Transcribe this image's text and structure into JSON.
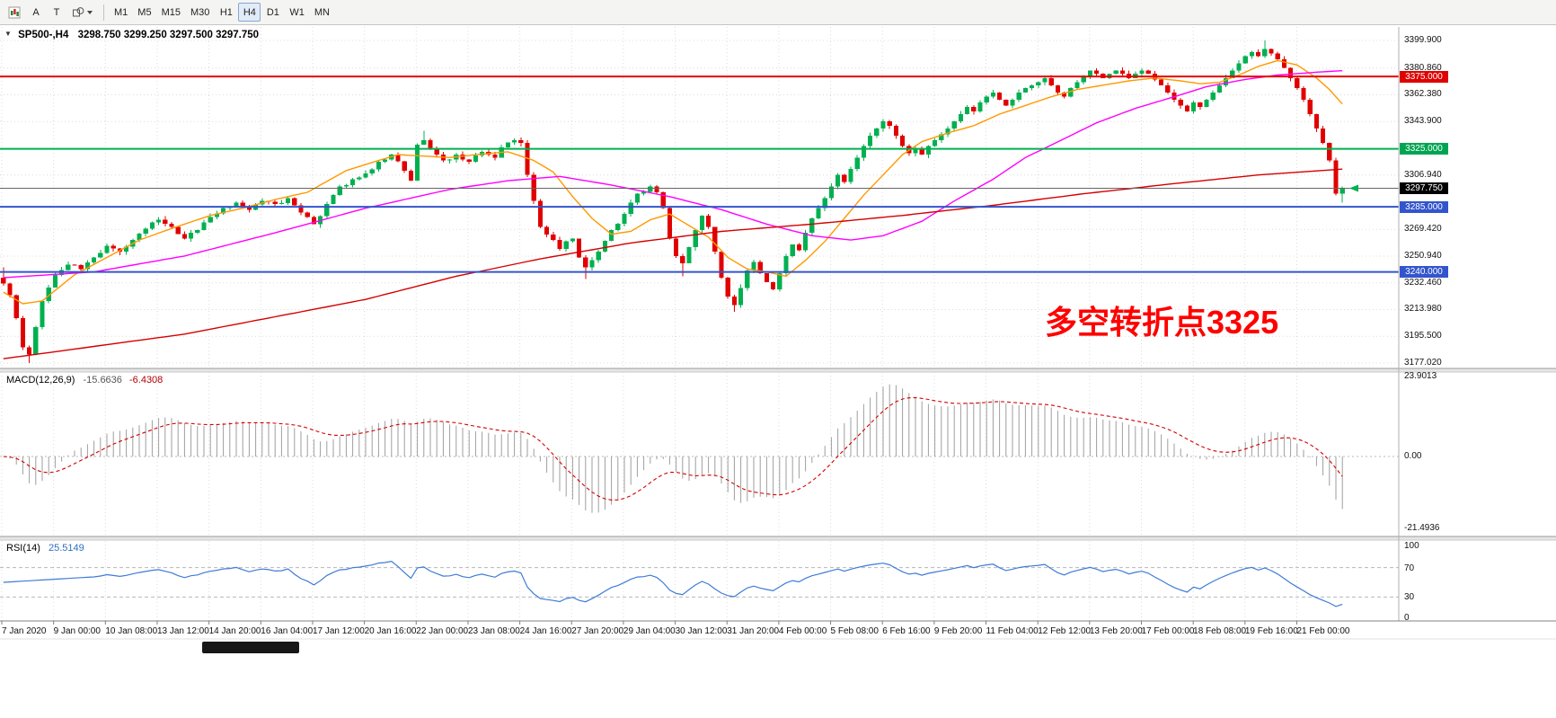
{
  "toolbar": {
    "tools": [
      {
        "name": "chart-list-icon",
        "label": ""
      },
      {
        "name": "text-a-tool",
        "label": "A"
      },
      {
        "name": "text-t-tool",
        "label": "T"
      },
      {
        "name": "shapes-tool",
        "label": ""
      }
    ],
    "timeframes": [
      {
        "label": "M1",
        "active": false
      },
      {
        "label": "M5",
        "active": false
      },
      {
        "label": "M15",
        "active": false
      },
      {
        "label": "M30",
        "active": false
      },
      {
        "label": "H1",
        "active": false
      },
      {
        "label": "H4",
        "active": true
      },
      {
        "label": "D1",
        "active": false
      },
      {
        "label": "W1",
        "active": false
      },
      {
        "label": "MN",
        "active": false
      }
    ]
  },
  "chart": {
    "header": {
      "caret": "▼",
      "symbol": "SP500-,H4",
      "ohlc": "3298.750 3299.250 3297.500 3297.750"
    },
    "annotation": {
      "text": "多空转折点3325",
      "color": "#FF0000"
    },
    "price_markers": [
      {
        "label": "3375.000",
        "price": 3375.0,
        "color": "#df0000"
      },
      {
        "label": "3325.000",
        "price": 3325.0,
        "color": "#00a551"
      },
      {
        "label": "3297.750",
        "price": 3297.75,
        "color": "#000000"
      },
      {
        "label": "3285.000",
        "price": 3285.0,
        "color": "#3355cc"
      },
      {
        "label": "3240.000",
        "price": 3240.0,
        "color": "#3355cc"
      }
    ]
  },
  "macd": {
    "title_name": "MACD(12,26,9)",
    "main_value": "-15.6636",
    "signal_value": "-6.4308",
    "scale": [
      {
        "label": "23.9013",
        "value": 23.9013
      },
      {
        "label": "0.00",
        "value": 0
      },
      {
        "label": "-21.4936",
        "value": -21.4936
      }
    ]
  },
  "rsi": {
    "title_name": "RSI(14)",
    "value": "25.5149",
    "scale": [
      {
        "label": "100",
        "value": 100
      },
      {
        "label": "70",
        "value": 70
      },
      {
        "label": "30",
        "value": 30
      },
      {
        "label": "0",
        "value": 0
      }
    ],
    "levels": [
      70,
      30
    ]
  },
  "chart_data": {
    "type": "candlestick",
    "symbol": "SP500-",
    "timeframe": "H4",
    "bars": 208,
    "current_price": 3297.75,
    "ohlc_display": {
      "open": "3298.750",
      "high": "3299.250",
      "low": "3297.500",
      "close": "3297.750"
    },
    "price_axis": {
      "min": 3177.02,
      "max": 3407.38,
      "ticks": [
        {
          "label": "3399.900",
          "price": 3399.9
        },
        {
          "label": "3380.860",
          "price": 3380.86
        },
        {
          "label": "3362.380",
          "price": 3362.38
        },
        {
          "label": "3343.900",
          "price": 3343.9
        },
        {
          "label": "3306.940",
          "price": 3306.94
        },
        {
          "label": "3269.420",
          "price": 3269.42
        },
        {
          "label": "3250.940",
          "price": 3250.94
        },
        {
          "label": "3232.460",
          "price": 3232.46
        },
        {
          "label": "3213.980",
          "price": 3213.98
        },
        {
          "label": "3195.500",
          "price": 3195.5
        },
        {
          "label": "3177.020",
          "price": 3177.02
        }
      ]
    },
    "horizontal_lines": [
      {
        "price": 3375.0,
        "color": "#e80000",
        "width": 2
      },
      {
        "price": 3325.0,
        "color": "#00b050",
        "width": 2
      },
      {
        "price": 3285.0,
        "color": "#3355cc",
        "width": 2
      },
      {
        "price": 3240.0,
        "color": "#3355cc",
        "width": 2
      }
    ],
    "close_anchors": [
      [
        0,
        3232
      ],
      [
        1,
        3224
      ],
      [
        2,
        3208
      ],
      [
        3,
        3188
      ],
      [
        4,
        3183
      ],
      [
        5,
        3202
      ],
      [
        6,
        3220
      ],
      [
        8,
        3238
      ],
      [
        10,
        3245
      ],
      [
        12,
        3242
      ],
      [
        14,
        3250
      ],
      [
        16,
        3258
      ],
      [
        18,
        3254
      ],
      [
        20,
        3262
      ],
      [
        22,
        3270
      ],
      [
        24,
        3276
      ],
      [
        26,
        3271
      ],
      [
        28,
        3263
      ],
      [
        30,
        3269
      ],
      [
        32,
        3278
      ],
      [
        34,
        3284
      ],
      [
        36,
        3288
      ],
      [
        38,
        3283
      ],
      [
        40,
        3289
      ],
      [
        42,
        3287
      ],
      [
        44,
        3291
      ],
      [
        46,
        3281
      ],
      [
        48,
        3273
      ],
      [
        50,
        3287
      ],
      [
        52,
        3299
      ],
      [
        54,
        3304
      ],
      [
        56,
        3308
      ],
      [
        58,
        3316
      ],
      [
        60,
        3321
      ],
      [
        62,
        3310
      ],
      [
        63,
        3303
      ],
      [
        64,
        3328
      ],
      [
        65,
        3331
      ],
      [
        66,
        3325
      ],
      [
        68,
        3317
      ],
      [
        70,
        3321
      ],
      [
        72,
        3316
      ],
      [
        74,
        3323
      ],
      [
        76,
        3319
      ],
      [
        77,
        3326
      ],
      [
        79,
        3331
      ],
      [
        80,
        3329
      ],
      [
        81,
        3307
      ],
      [
        82,
        3289
      ],
      [
        83,
        3271
      ],
      [
        85,
        3262
      ],
      [
        86,
        3256
      ],
      [
        87,
        3261
      ],
      [
        88,
        3263
      ],
      [
        89,
        3250
      ],
      [
        90,
        3243
      ],
      [
        91,
        3248
      ],
      [
        92,
        3254
      ],
      [
        94,
        3269
      ],
      [
        96,
        3280
      ],
      [
        97,
        3288
      ],
      [
        98,
        3294
      ],
      [
        100,
        3299
      ],
      [
        101,
        3295
      ],
      [
        102,
        3284
      ],
      [
        103,
        3263
      ],
      [
        104,
        3251
      ],
      [
        105,
        3246
      ],
      [
        106,
        3257
      ],
      [
        107,
        3269
      ],
      [
        108,
        3279
      ],
      [
        109,
        3271
      ],
      [
        110,
        3254
      ],
      [
        111,
        3236
      ],
      [
        112,
        3223
      ],
      [
        113,
        3217
      ],
      [
        114,
        3229
      ],
      [
        115,
        3241
      ],
      [
        116,
        3247
      ],
      [
        117,
        3239
      ],
      [
        118,
        3233
      ],
      [
        119,
        3228
      ],
      [
        120,
        3239
      ],
      [
        121,
        3251
      ],
      [
        122,
        3259
      ],
      [
        123,
        3255
      ],
      [
        124,
        3267
      ],
      [
        125,
        3277
      ],
      [
        126,
        3284
      ],
      [
        127,
        3291
      ],
      [
        128,
        3299
      ],
      [
        129,
        3307
      ],
      [
        130,
        3302
      ],
      [
        131,
        3311
      ],
      [
        132,
        3319
      ],
      [
        133,
        3327
      ],
      [
        134,
        3334
      ],
      [
        135,
        3339
      ],
      [
        136,
        3344
      ],
      [
        137,
        3341
      ],
      [
        138,
        3334
      ],
      [
        139,
        3327
      ],
      [
        140,
        3322
      ],
      [
        141,
        3325
      ],
      [
        142,
        3321
      ],
      [
        143,
        3327
      ],
      [
        144,
        3331
      ],
      [
        145,
        3335
      ],
      [
        146,
        3339
      ],
      [
        147,
        3344
      ],
      [
        148,
        3349
      ],
      [
        149,
        3354
      ],
      [
        150,
        3351
      ],
      [
        151,
        3357
      ],
      [
        152,
        3361
      ],
      [
        153,
        3364
      ],
      [
        154,
        3359
      ],
      [
        155,
        3355
      ],
      [
        156,
        3359
      ],
      [
        157,
        3364
      ],
      [
        158,
        3367
      ],
      [
        159,
        3369
      ],
      [
        160,
        3371
      ],
      [
        161,
        3374
      ],
      [
        162,
        3369
      ],
      [
        163,
        3364
      ],
      [
        164,
        3361
      ],
      [
        165,
        3367
      ],
      [
        166,
        3371
      ],
      [
        167,
        3375
      ],
      [
        168,
        3379
      ],
      [
        169,
        3377
      ],
      [
        170,
        3374
      ],
      [
        171,
        3377
      ],
      [
        172,
        3379
      ],
      [
        173,
        3377
      ],
      [
        174,
        3374
      ],
      [
        175,
        3377
      ],
      [
        176,
        3379
      ],
      [
        177,
        3377
      ],
      [
        178,
        3373
      ],
      [
        179,
        3369
      ],
      [
        180,
        3364
      ],
      [
        181,
        3359
      ],
      [
        182,
        3355
      ],
      [
        183,
        3351
      ],
      [
        184,
        3357
      ],
      [
        185,
        3354
      ],
      [
        186,
        3359
      ],
      [
        187,
        3364
      ],
      [
        188,
        3369
      ],
      [
        189,
        3374
      ],
      [
        190,
        3379
      ],
      [
        191,
        3384
      ],
      [
        192,
        3389
      ],
      [
        193,
        3392
      ],
      [
        194,
        3389
      ],
      [
        195,
        3394
      ],
      [
        196,
        3391
      ],
      [
        197,
        3387
      ],
      [
        198,
        3381
      ],
      [
        199,
        3374
      ],
      [
        200,
        3367
      ],
      [
        201,
        3359
      ],
      [
        202,
        3349
      ],
      [
        203,
        3339
      ],
      [
        204,
        3329
      ],
      [
        205,
        3317
      ],
      [
        206,
        3294
      ],
      [
        207,
        3297.75
      ]
    ],
    "wick_overrides": {
      "0": {
        "high": 3243
      },
      "4": {
        "low": 3177.0
      },
      "65": {
        "high": 3337.5
      },
      "90": {
        "low": 3235.0
      },
      "105": {
        "low": 3237.0
      },
      "113": {
        "low": 3212.5
      },
      "195": {
        "high": 3399.9
      },
      "207": {
        "low": 3288.0
      }
    },
    "moving_averages": [
      {
        "name": "fast",
        "color": "#ff9900",
        "anchors": [
          [
            0,
            3226
          ],
          [
            3,
            3218
          ],
          [
            6,
            3220
          ],
          [
            11,
            3238
          ],
          [
            16,
            3250
          ],
          [
            21,
            3262
          ],
          [
            26,
            3270
          ],
          [
            32,
            3279
          ],
          [
            37,
            3284
          ],
          [
            42,
            3290
          ],
          [
            47,
            3295
          ],
          [
            53,
            3310
          ],
          [
            58,
            3317
          ],
          [
            61,
            3321
          ],
          [
            65,
            3320
          ],
          [
            69,
            3319
          ],
          [
            73,
            3321
          ],
          [
            78,
            3323
          ],
          [
            82,
            3317
          ],
          [
            85,
            3309
          ],
          [
            88,
            3292
          ],
          [
            91,
            3277
          ],
          [
            94,
            3266
          ],
          [
            97,
            3268
          ],
          [
            100,
            3276
          ],
          [
            103,
            3280
          ],
          [
            106,
            3272
          ],
          [
            109,
            3264
          ],
          [
            112,
            3250
          ],
          [
            115,
            3242
          ],
          [
            118,
            3240
          ],
          [
            121,
            3237
          ],
          [
            124,
            3248
          ],
          [
            127,
            3261
          ],
          [
            130,
            3277
          ],
          [
            133,
            3293
          ],
          [
            136,
            3307
          ],
          [
            139,
            3321
          ],
          [
            142,
            3330
          ],
          [
            146,
            3336
          ],
          [
            150,
            3341
          ],
          [
            154,
            3349
          ],
          [
            158,
            3355
          ],
          [
            162,
            3361
          ],
          [
            166,
            3366
          ],
          [
            170,
            3369
          ],
          [
            174,
            3372
          ],
          [
            178,
            3374
          ],
          [
            182,
            3372
          ],
          [
            185,
            3370
          ],
          [
            188,
            3371
          ],
          [
            191,
            3376
          ],
          [
            194,
            3382
          ],
          [
            197,
            3386
          ],
          [
            200,
            3383
          ],
          [
            203,
            3374
          ],
          [
            205,
            3366
          ],
          [
            207,
            3356
          ]
        ]
      },
      {
        "name": "medium",
        "color": "#ff00ff",
        "anchors": [
          [
            0,
            3236
          ],
          [
            14,
            3240
          ],
          [
            28,
            3251
          ],
          [
            42,
            3267
          ],
          [
            56,
            3284
          ],
          [
            69,
            3297
          ],
          [
            78,
            3303
          ],
          [
            86,
            3306
          ],
          [
            94,
            3300
          ],
          [
            103,
            3292
          ],
          [
            111,
            3283
          ],
          [
            118,
            3273
          ],
          [
            125,
            3265
          ],
          [
            131,
            3262
          ],
          [
            136,
            3265
          ],
          [
            142,
            3275
          ],
          [
            147,
            3289
          ],
          [
            153,
            3304
          ],
          [
            158,
            3319
          ],
          [
            164,
            3332
          ],
          [
            169,
            3343
          ],
          [
            175,
            3353
          ],
          [
            181,
            3361
          ],
          [
            186,
            3368
          ],
          [
            192,
            3373
          ],
          [
            197,
            3376
          ],
          [
            203,
            3378
          ],
          [
            207,
            3379
          ]
        ]
      },
      {
        "name": "slow",
        "color": "#d40000",
        "anchors": [
          [
            0,
            3180
          ],
          [
            28,
            3197
          ],
          [
            56,
            3221
          ],
          [
            70,
            3237
          ],
          [
            83,
            3249
          ],
          [
            97,
            3260
          ],
          [
            111,
            3268
          ],
          [
            125,
            3273
          ],
          [
            139,
            3279
          ],
          [
            153,
            3286
          ],
          [
            167,
            3294
          ],
          [
            181,
            3301
          ],
          [
            194,
            3307
          ],
          [
            207,
            3311
          ]
        ]
      }
    ],
    "indicators": [
      {
        "name": "MACD",
        "params": "12,26,9",
        "main_value": -15.6636,
        "signal_value": -6.4308,
        "scale_max": 23.9013,
        "scale_min": -21.4936,
        "histogram_color": "#9e9e9e",
        "signal_color": "#d40000"
      },
      {
        "name": "RSI",
        "params": "14",
        "value": 25.5149,
        "levels": [
          70,
          30
        ],
        "scale_max": 100,
        "scale_min": 0,
        "line_color": "#3e7bd6"
      }
    ],
    "time_labels": [
      "7 Jan 2020",
      "9 Jan 00:00",
      "10 Jan 08:00",
      "13 Jan 12:00",
      "14 Jan 20:00",
      "16 Jan 04:00",
      "17 Jan 12:00",
      "20 Jan 16:00",
      "22 Jan 00:00",
      "23 Jan 08:00",
      "24 Jan 16:00",
      "27 Jan 20:00",
      "29 Jan 04:00",
      "30 Jan 12:00",
      "31 Jan 20:00",
      "4 Feb 00:00",
      "5 Feb 08:00",
      "6 Feb 16:00",
      "9 Feb 20:00",
      "11 Feb 04:00",
      "12 Feb 12:00",
      "13 Feb 20:00",
      "17 Feb 00:00",
      "18 Feb 08:00",
      "19 Feb 16:00",
      "21 Feb 00:00"
    ]
  }
}
